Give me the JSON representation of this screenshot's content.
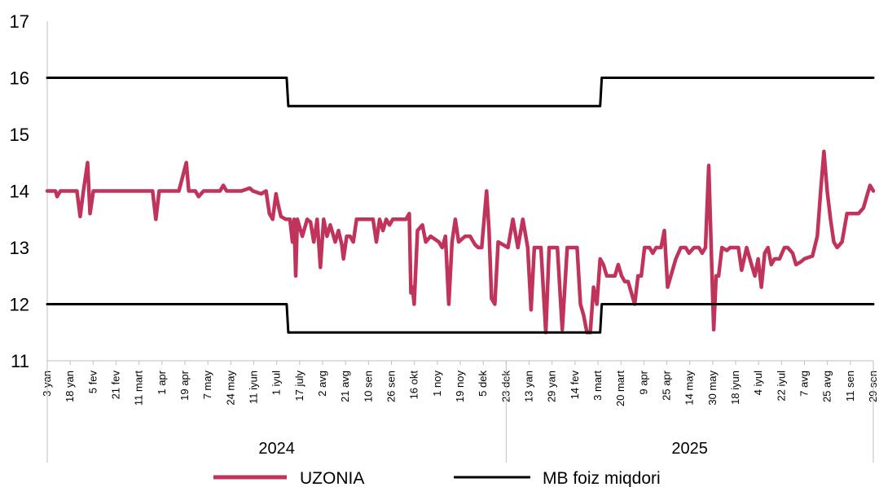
{
  "chart_data": {
    "type": "line",
    "ylim": [
      11,
      17
    ],
    "yticks": [
      11,
      12,
      13,
      14,
      15,
      16,
      17
    ],
    "grid": false,
    "legend_position": "bottom",
    "x_tick_labels": [
      "3 yan",
      "18 yan",
      "5 fev",
      "21 fev",
      "11 mart",
      "1 apr",
      "19 apr",
      "7 may",
      "24 may",
      "11 iyun",
      "1 iyul",
      "17 july",
      "2 avg",
      "21 avg",
      "10 sen",
      "26 sen",
      "16 okt",
      "1 noy",
      "19 noy",
      "5 dek",
      "23 dek",
      "13 yan",
      "29 yan",
      "14 fev",
      "3 mart",
      "20 mart",
      "9 apr",
      "25 apr",
      "14 may",
      "30 may",
      "18 iyun",
      "4 iyul",
      "22 iyul",
      "7 avg",
      "25 avg",
      "11 sen",
      "29 sen"
    ],
    "years": [
      {
        "label": "2024",
        "first_tick": 0,
        "last_tick": 20
      },
      {
        "label": "2025",
        "first_tick": 20,
        "last_tick": 36
      }
    ],
    "series": [
      {
        "name": "UZONIA",
        "color": "#c0335a",
        "points": [
          [
            0,
            14.0
          ],
          [
            0.5,
            14.0
          ],
          [
            0.6,
            13.9
          ],
          [
            0.8,
            14.0
          ],
          [
            1.5,
            14.0
          ],
          [
            1.8,
            14.0
          ],
          [
            2.0,
            13.55
          ],
          [
            2.2,
            14.0
          ],
          [
            2.45,
            14.5
          ],
          [
            2.6,
            13.6
          ],
          [
            2.8,
            14.0
          ],
          [
            3.0,
            14.0
          ],
          [
            5.0,
            14.0
          ],
          [
            6.0,
            14.0
          ],
          [
            6.4,
            14.0
          ],
          [
            6.6,
            13.5
          ],
          [
            6.8,
            14.0
          ],
          [
            7.0,
            14.0
          ],
          [
            8.0,
            14.0
          ],
          [
            8.45,
            14.5
          ],
          [
            8.6,
            14.0
          ],
          [
            9.0,
            14.0
          ],
          [
            9.2,
            13.9
          ],
          [
            9.5,
            14.0
          ],
          [
            10.0,
            14.0
          ],
          [
            10.5,
            14.0
          ],
          [
            10.7,
            14.1
          ],
          [
            10.9,
            14.0
          ],
          [
            11.5,
            14.0
          ],
          [
            11.8,
            14.0
          ],
          [
            12.3,
            14.05
          ],
          [
            12.5,
            14.0
          ],
          [
            13.0,
            13.95
          ],
          [
            13.3,
            14.0
          ],
          [
            13.5,
            13.6
          ],
          [
            13.7,
            13.5
          ],
          [
            13.9,
            13.95
          ],
          [
            14.0,
            13.8
          ],
          [
            14.2,
            13.55
          ],
          [
            14.5,
            13.5
          ],
          [
            14.75,
            13.5
          ],
          [
            14.9,
            13.1
          ],
          [
            15.0,
            13.5
          ],
          [
            15.1,
            12.5
          ],
          [
            15.2,
            13.5
          ],
          [
            15.5,
            13.2
          ],
          [
            15.8,
            13.5
          ],
          [
            16.0,
            13.45
          ],
          [
            16.2,
            13.1
          ],
          [
            16.4,
            13.5
          ],
          [
            16.6,
            12.65
          ],
          [
            16.8,
            13.5
          ],
          [
            17.0,
            13.2
          ],
          [
            17.2,
            13.4
          ],
          [
            17.5,
            13.1
          ],
          [
            17.7,
            13.3
          ],
          [
            17.9,
            13.05
          ],
          [
            18.0,
            12.8
          ],
          [
            18.2,
            13.2
          ],
          [
            18.4,
            13.2
          ],
          [
            18.6,
            13.1
          ],
          [
            18.8,
            13.5
          ],
          [
            19.0,
            13.5
          ],
          [
            19.5,
            13.5
          ],
          [
            19.8,
            13.5
          ],
          [
            20.0,
            13.1
          ],
          [
            20.2,
            13.5
          ],
          [
            20.4,
            13.3
          ],
          [
            20.6,
            13.5
          ],
          [
            20.8,
            13.4
          ],
          [
            21.0,
            13.5
          ],
          [
            21.5,
            13.5
          ],
          [
            21.8,
            13.5
          ],
          [
            22.0,
            13.6
          ],
          [
            22.1,
            12.2
          ],
          [
            22.2,
            12.3
          ],
          [
            22.3,
            12.0
          ],
          [
            22.5,
            13.3
          ],
          [
            22.8,
            13.4
          ],
          [
            23.0,
            13.1
          ],
          [
            23.3,
            13.2
          ],
          [
            23.8,
            13.1
          ],
          [
            24.0,
            13.0
          ],
          [
            24.2,
            13.2
          ],
          [
            24.4,
            12.0
          ],
          [
            24.6,
            13.1
          ],
          [
            24.8,
            13.5
          ],
          [
            25.0,
            13.1
          ],
          [
            25.4,
            13.2
          ],
          [
            25.7,
            13.2
          ],
          [
            26.0,
            13.05
          ],
          [
            26.2,
            13.0
          ],
          [
            26.4,
            13.0
          ],
          [
            26.7,
            14.0
          ],
          [
            26.85,
            13.3
          ],
          [
            27.0,
            12.1
          ],
          [
            27.2,
            12.0
          ],
          [
            27.4,
            13.1
          ],
          [
            28.0,
            13.0
          ],
          [
            28.3,
            13.5
          ],
          [
            28.6,
            13.0
          ],
          [
            28.9,
            13.5
          ],
          [
            29.2,
            13.0
          ],
          [
            29.4,
            11.9
          ],
          [
            29.6,
            13.0
          ],
          [
            30.0,
            13.0
          ],
          [
            30.3,
            11.5
          ],
          [
            30.5,
            13.0
          ],
          [
            31.0,
            13.0
          ],
          [
            31.3,
            11.55
          ],
          [
            31.6,
            13.0
          ],
          [
            32.0,
            13.0
          ],
          [
            32.2,
            13.0
          ],
          [
            32.4,
            12.0
          ],
          [
            32.6,
            11.8
          ],
          [
            32.8,
            11.5
          ],
          [
            33.0,
            11.5
          ],
          [
            33.2,
            12.3
          ],
          [
            33.4,
            12.0
          ],
          [
            33.6,
            12.8
          ],
          [
            33.8,
            12.7
          ],
          [
            34.0,
            12.5
          ],
          [
            34.5,
            12.5
          ],
          [
            34.7,
            12.7
          ],
          [
            34.9,
            12.5
          ],
          [
            35.1,
            12.4
          ],
          [
            35.3,
            12.4
          ],
          [
            35.5,
            12.2
          ],
          [
            35.7,
            12.0
          ],
          [
            35.9,
            12.5
          ],
          [
            36.1,
            12.5
          ],
          [
            36.3,
            13.0
          ],
          [
            36.6,
            13.0
          ],
          [
            36.8,
            12.9
          ],
          [
            37.0,
            13.0
          ],
          [
            37.3,
            13.0
          ],
          [
            37.5,
            13.3
          ],
          [
            37.7,
            12.3
          ],
          [
            37.9,
            12.5
          ],
          [
            38.2,
            12.8
          ],
          [
            38.5,
            13.0
          ],
          [
            38.8,
            13.0
          ],
          [
            39.0,
            12.9
          ],
          [
            39.3,
            13.0
          ],
          [
            39.6,
            13.0
          ],
          [
            39.8,
            12.9
          ],
          [
            40.0,
            13.0
          ],
          [
            40.2,
            14.45
          ],
          [
            40.35,
            13.0
          ],
          [
            40.5,
            11.55
          ],
          [
            40.65,
            12.5
          ],
          [
            40.8,
            12.5
          ],
          [
            41.0,
            13.0
          ],
          [
            41.3,
            12.95
          ],
          [
            41.5,
            13.0
          ],
          [
            42.0,
            13.0
          ],
          [
            42.2,
            12.6
          ],
          [
            42.5,
            13.0
          ],
          [
            42.8,
            12.7
          ],
          [
            43.0,
            12.5
          ],
          [
            43.2,
            12.8
          ],
          [
            43.4,
            12.3
          ],
          [
            43.6,
            12.9
          ],
          [
            43.8,
            13.0
          ],
          [
            44.0,
            12.7
          ],
          [
            44.2,
            12.8
          ],
          [
            44.5,
            12.8
          ],
          [
            44.8,
            13.0
          ],
          [
            45.0,
            13.0
          ],
          [
            45.3,
            12.9
          ],
          [
            45.5,
            12.7
          ],
          [
            45.8,
            12.75
          ],
          [
            46.0,
            12.8
          ],
          [
            46.5,
            12.85
          ],
          [
            46.8,
            13.2
          ],
          [
            47.0,
            14.0
          ],
          [
            47.2,
            14.7
          ],
          [
            47.4,
            14.0
          ],
          [
            47.6,
            13.5
          ],
          [
            47.8,
            13.1
          ],
          [
            48.0,
            13.0
          ],
          [
            48.3,
            13.1
          ],
          [
            48.6,
            13.6
          ],
          [
            49.0,
            13.6
          ],
          [
            49.3,
            13.6
          ],
          [
            49.6,
            13.7
          ],
          [
            49.8,
            13.9
          ],
          [
            50.0,
            14.1
          ],
          [
            50.2,
            14.0
          ]
        ]
      },
      {
        "name": "MB foiz miqdori",
        "color": "#000000",
        "points": [
          [
            0,
            16.0
          ],
          [
            14.55,
            16.0
          ],
          [
            14.65,
            15.5
          ],
          [
            33.6,
            15.5
          ],
          [
            33.7,
            16.0
          ],
          [
            50.2,
            16.0
          ]
        ]
      },
      {
        "name": "MB foiz miqdori lower",
        "color": "#000000",
        "points": [
          [
            0,
            12.0
          ],
          [
            14.55,
            12.0
          ],
          [
            14.65,
            11.5
          ],
          [
            33.6,
            11.5
          ],
          [
            33.7,
            12.0
          ],
          [
            50.2,
            12.0
          ]
        ]
      }
    ],
    "legend": [
      {
        "label": "UZONIA",
        "color": "#c0335a"
      },
      {
        "label": "MB foiz miqdori",
        "color": "#000000"
      }
    ]
  }
}
